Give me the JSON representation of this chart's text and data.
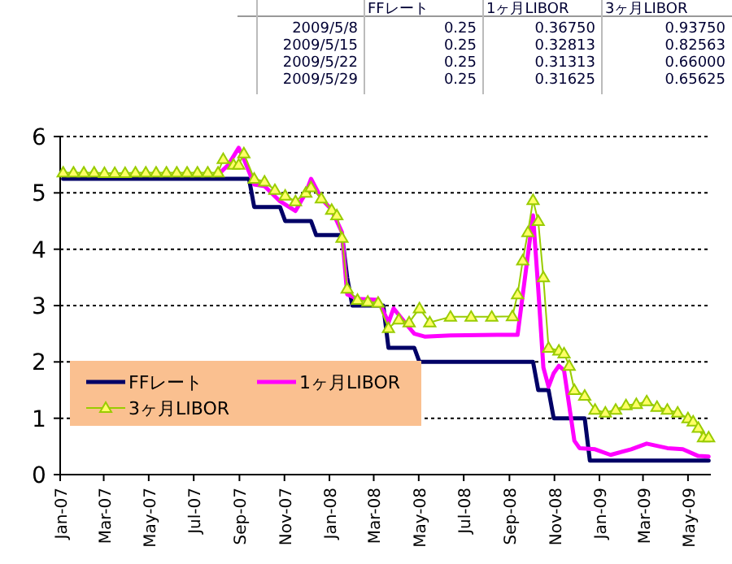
{
  "chart_data": {
    "type": "line",
    "annotations": [
      "FFレート",
      "1ヶ月LIBOR",
      "3ヶ月LIBOR",
      "2009/5/8",
      "0.25",
      "0.36750",
      "0.93750",
      "2009/5/15",
      "0.25",
      "0.32813",
      "0.82563",
      "2009/5/22",
      "0.25",
      "0.31313",
      "0.66000",
      "2009/5/29",
      "0.25",
      "0.31625",
      "0.65625"
    ],
    "series": [
      {
        "name": "FFレート",
        "color": "#000066",
        "marker": "none",
        "x": [
          "2007-01-05",
          "2007-09-14",
          "2007-09-21",
          "2007-10-26",
          "2007-11-02",
          "2007-12-07",
          "2007-12-14",
          "2008-01-18",
          "2008-01-25",
          "2008-02-01",
          "2008-03-14",
          "2008-03-21",
          "2008-04-25",
          "2008-05-02",
          "2008-10-03",
          "2008-10-10",
          "2008-10-24",
          "2008-10-31",
          "2008-12-12",
          "2008-12-19",
          "2009-05-29"
        ],
        "values": [
          5.25,
          5.25,
          4.75,
          4.75,
          4.5,
          4.5,
          4.25,
          4.25,
          3.5,
          3.0,
          3.0,
          2.25,
          2.25,
          2.0,
          2.0,
          1.5,
          1.5,
          1.0,
          1.0,
          0.25,
          0.25
        ]
      },
      {
        "name": "1ヶ月LIBOR",
        "color": "#ff00ff",
        "marker": "none",
        "x": [
          "2007-08-03",
          "2007-08-17",
          "2007-08-31",
          "2007-09-07",
          "2007-09-21",
          "2007-10-05",
          "2007-10-26",
          "2007-11-16",
          "2007-11-30",
          "2007-12-07",
          "2007-12-21",
          "2008-01-04",
          "2008-01-18",
          "2008-01-25",
          "2008-02-08",
          "2008-03-07",
          "2008-03-21",
          "2008-03-28",
          "2008-04-11",
          "2008-04-25",
          "2008-05-09",
          "2008-06-13",
          "2008-08-15",
          "2008-09-12",
          "2008-09-26",
          "2008-10-03",
          "2008-10-10",
          "2008-10-17",
          "2008-10-24",
          "2008-10-31",
          "2008-11-07",
          "2008-11-14",
          "2008-11-28",
          "2008-12-05",
          "2008-12-26",
          "2009-01-16",
          "2009-02-13",
          "2009-03-06",
          "2009-04-03",
          "2009-04-24",
          "2009-05-15",
          "2009-05-29"
        ],
        "values": [
          5.32,
          5.5,
          5.8,
          5.6,
          5.15,
          5.12,
          4.85,
          4.68,
          5.0,
          5.25,
          4.9,
          4.7,
          4.3,
          3.2,
          3.12,
          3.1,
          2.7,
          2.95,
          2.72,
          2.5,
          2.45,
          2.47,
          2.48,
          2.48,
          3.9,
          4.6,
          3.3,
          1.9,
          1.56,
          1.8,
          1.93,
          1.85,
          0.6,
          0.47,
          0.45,
          0.35,
          0.45,
          0.55,
          0.47,
          0.45,
          0.33,
          0.32
        ]
      },
      {
        "name": "3ヶ月LIBOR",
        "color": "#99cc00",
        "marker": "triangle",
        "x": [
          "2007-01-05",
          "2007-01-19",
          "2007-02-02",
          "2007-02-16",
          "2007-03-02",
          "2007-03-16",
          "2007-03-30",
          "2007-04-13",
          "2007-04-27",
          "2007-05-11",
          "2007-05-25",
          "2007-06-08",
          "2007-06-22",
          "2007-07-06",
          "2007-07-20",
          "2007-08-03",
          "2007-08-10",
          "2007-08-24",
          "2007-08-31",
          "2007-09-07",
          "2007-09-21",
          "2007-10-05",
          "2007-10-19",
          "2007-11-02",
          "2007-11-16",
          "2007-11-30",
          "2007-12-07",
          "2007-12-21",
          "2008-01-04",
          "2008-01-11",
          "2008-01-18",
          "2008-01-25",
          "2008-02-08",
          "2008-02-22",
          "2008-03-07",
          "2008-03-21",
          "2008-04-04",
          "2008-04-18",
          "2008-05-02",
          "2008-05-16",
          "2008-06-13",
          "2008-07-11",
          "2008-08-08",
          "2008-09-05",
          "2008-09-12",
          "2008-09-19",
          "2008-09-26",
          "2008-10-03",
          "2008-10-10",
          "2008-10-17",
          "2008-10-24",
          "2008-11-07",
          "2008-11-14",
          "2008-11-21",
          "2008-11-28",
          "2008-12-12",
          "2008-12-26",
          "2009-01-09",
          "2009-01-23",
          "2009-02-06",
          "2009-02-20",
          "2009-03-06",
          "2009-03-20",
          "2009-04-03",
          "2009-04-17",
          "2009-05-01",
          "2009-05-08",
          "2009-05-15",
          "2009-05-22",
          "2009-05-29"
        ],
        "values": [
          5.36,
          5.36,
          5.36,
          5.36,
          5.35,
          5.35,
          5.35,
          5.36,
          5.36,
          5.36,
          5.36,
          5.36,
          5.36,
          5.36,
          5.36,
          5.36,
          5.6,
          5.5,
          5.5,
          5.7,
          5.25,
          5.2,
          5.05,
          4.95,
          4.85,
          5.0,
          5.1,
          4.9,
          4.7,
          4.6,
          4.2,
          3.3,
          3.1,
          3.07,
          3.05,
          2.6,
          2.75,
          2.7,
          2.95,
          2.7,
          2.8,
          2.8,
          2.8,
          2.81,
          3.2,
          3.8,
          4.3,
          4.87,
          4.5,
          3.5,
          2.25,
          2.2,
          2.15,
          1.93,
          1.5,
          1.4,
          1.15,
          1.1,
          1.15,
          1.23,
          1.25,
          1.3,
          1.2,
          1.15,
          1.1,
          1.0,
          0.94,
          0.83,
          0.66,
          0.66
        ]
      }
    ],
    "xlim": [
      "2007-01-01",
      "2009-06-01"
    ],
    "xticks": [
      {
        "value": "2007-01",
        "label": "Jan-07"
      },
      {
        "value": "2007-03",
        "label": "Mar-07"
      },
      {
        "value": "2007-05",
        "label": "May-07"
      },
      {
        "value": "2007-07",
        "label": "Jul-07"
      },
      {
        "value": "2007-09",
        "label": "Sep-07"
      },
      {
        "value": "2007-11",
        "label": "Nov-07"
      },
      {
        "value": "2008-01",
        "label": "Jan-08"
      },
      {
        "value": "2008-03",
        "label": "Mar-08"
      },
      {
        "value": "2008-05",
        "label": "May-08"
      },
      {
        "value": "2008-07",
        "label": "Jul-08"
      },
      {
        "value": "2008-09",
        "label": "Sep-08"
      },
      {
        "value": "2008-11",
        "label": "Nov-08"
      },
      {
        "value": "2009-01",
        "label": "Jan-09"
      },
      {
        "value": "2009-03",
        "label": "Mar-09"
      },
      {
        "value": "2009-05",
        "label": "May-09"
      }
    ],
    "ylim": [
      0,
      6
    ],
    "yticks": [
      0,
      1,
      2,
      3,
      4,
      5,
      6
    ],
    "grid": "y",
    "legend": "bottom left"
  }
}
